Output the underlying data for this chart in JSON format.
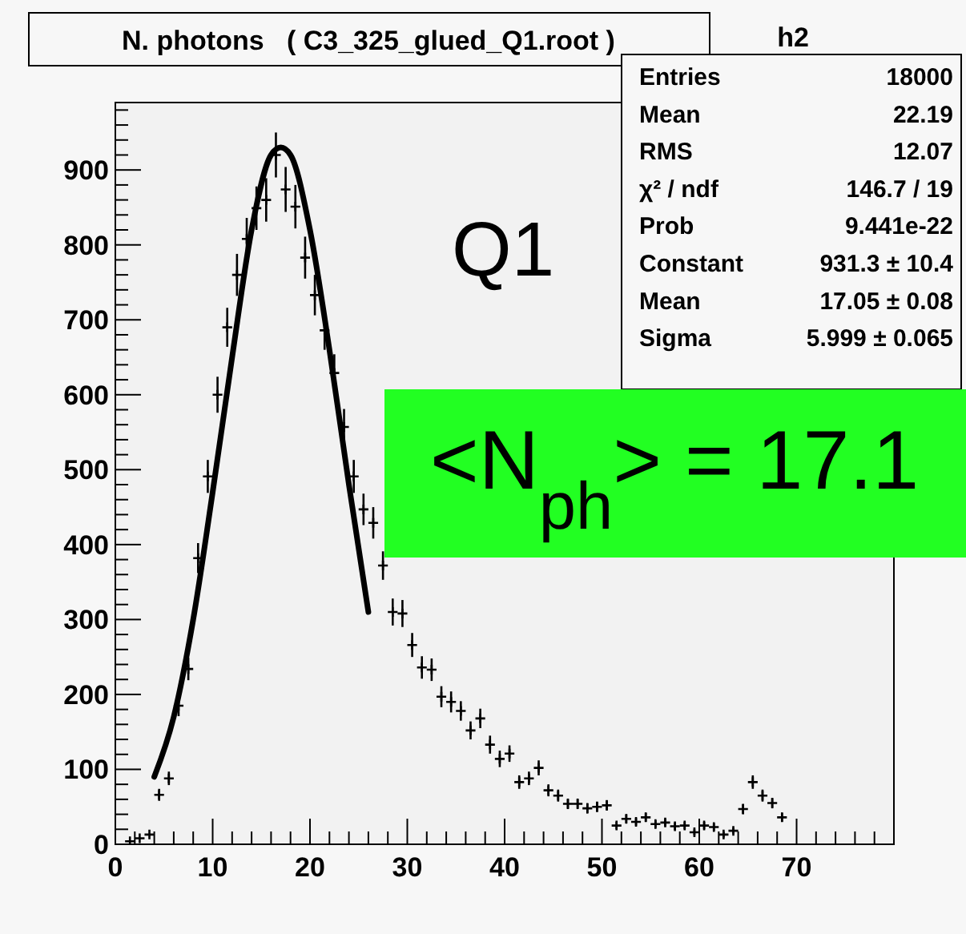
{
  "chart_data": {
    "type": "scatter",
    "title": "N. photons   ( C3_325_glued_Q1.root )",
    "annotations": [
      "h2",
      "Entries",
      "18000",
      "Mean",
      "22.19",
      "RMS",
      "12.07",
      "χ² / ndf",
      "146.7 / 19",
      "Prob",
      "9.441e-22",
      "Constant",
      "931.3 ± 10.4",
      "Mean",
      "17.05 ± 0.08",
      "Sigma",
      "5.999 ± 0.065",
      "Q1",
      "<N$_{ph}$> = 17.1"
    ],
    "xlim": [
      0,
      80
    ],
    "ylim": [
      0,
      990
    ],
    "xticks": [
      0,
      {
        "value": 2,
        "label": null
      },
      {
        "value": 4,
        "label": null
      },
      {
        "value": 6,
        "label": null
      },
      {
        "value": 8,
        "label": null
      },
      10,
      {
        "value": 12,
        "label": null
      },
      {
        "value": 14,
        "label": null
      },
      {
        "value": 16,
        "label": null
      },
      {
        "value": 18,
        "label": null
      },
      20,
      {
        "value": 22,
        "label": null
      },
      {
        "value": 24,
        "label": null
      },
      {
        "value": 26,
        "label": null
      },
      {
        "value": 28,
        "label": null
      },
      30,
      {
        "value": 32,
        "label": null
      },
      {
        "value": 34,
        "label": null
      },
      {
        "value": 36,
        "label": null
      },
      {
        "value": 38,
        "label": null
      },
      40,
      {
        "value": 42,
        "label": null
      },
      {
        "value": 44,
        "label": null
      },
      {
        "value": 46,
        "label": null
      },
      {
        "value": 48,
        "label": null
      },
      50,
      {
        "value": 52,
        "label": null
      },
      {
        "value": 54,
        "label": null
      },
      {
        "value": 56,
        "label": null
      },
      {
        "value": 58,
        "label": null
      },
      60,
      {
        "value": 62,
        "label": null
      },
      {
        "value": 64,
        "label": null
      },
      {
        "value": 66,
        "label": null
      },
      {
        "value": 68,
        "label": null
      },
      70,
      {
        "value": 72,
        "label": null
      },
      {
        "value": 74,
        "label": null
      },
      {
        "value": 76,
        "label": null
      },
      {
        "value": 78,
        "label": null
      }
    ],
    "yticks": [
      0,
      {
        "value": 20,
        "label": null
      },
      {
        "value": 40,
        "label": null
      },
      {
        "value": 60,
        "label": null
      },
      {
        "value": 80,
        "label": null
      },
      100,
      {
        "value": 120,
        "label": null
      },
      {
        "value": 140,
        "label": null
      },
      {
        "value": 160,
        "label": null
      },
      {
        "value": 180,
        "label": null
      },
      200,
      {
        "value": 220,
        "label": null
      },
      {
        "value": 240,
        "label": null
      },
      {
        "value": 260,
        "label": null
      },
      {
        "value": 280,
        "label": null
      },
      300,
      {
        "value": 320,
        "label": null
      },
      {
        "value": 340,
        "label": null
      },
      {
        "value": 360,
        "label": null
      },
      {
        "value": 380,
        "label": null
      },
      400,
      {
        "value": 420,
        "label": null
      },
      {
        "value": 440,
        "label": null
      },
      {
        "value": 460,
        "label": null
      },
      {
        "value": 480,
        "label": null
      },
      500,
      {
        "value": 520,
        "label": null
      },
      {
        "value": 540,
        "label": null
      },
      {
        "value": 560,
        "label": null
      },
      {
        "value": 580,
        "label": null
      },
      600,
      {
        "value": 620,
        "label": null
      },
      {
        "value": 640,
        "label": null
      },
      {
        "value": 660,
        "label": null
      },
      {
        "value": 680,
        "label": null
      },
      700,
      {
        "value": 720,
        "label": null
      },
      {
        "value": 740,
        "label": null
      },
      {
        "value": 760,
        "label": null
      },
      {
        "value": 780,
        "label": null
      },
      800,
      {
        "value": 820,
        "label": null
      },
      {
        "value": 840,
        "label": null
      },
      {
        "value": 860,
        "label": null
      },
      {
        "value": 880,
        "label": null
      },
      900,
      {
        "value": 920,
        "label": null
      },
      {
        "value": 940,
        "label": null
      },
      {
        "value": 960,
        "label": null
      },
      {
        "value": 980,
        "label": null
      }
    ],
    "grid": false,
    "marker": "cross",
    "line_style": "solid",
    "series": [
      {
        "color": "#000000",
        "x": [
          1.5,
          2.5,
          3.5,
          4.5,
          5.5,
          6.5,
          7.5,
          8.5,
          9.5,
          10.5,
          11.5,
          12.5,
          13.5,
          14.5,
          15.5,
          16.5,
          17.5,
          18.5,
          19.5,
          20.5,
          21.5,
          22.5,
          23.5,
          24.5,
          25.5,
          26.5,
          27.5,
          28.5,
          29.5,
          30.5,
          31.5,
          32.5,
          33.5,
          34.5,
          35.5,
          36.5,
          37.5,
          38.5,
          39.5,
          40.5,
          41.5,
          42.5,
          43.5,
          44.5,
          45.5,
          46.5,
          47.5,
          48.5,
          49.5,
          50.5,
          51.5,
          52.5,
          53.5,
          54.5,
          55.5,
          56.5,
          57.5,
          58.5,
          59.5,
          60.5,
          61.5,
          62.5,
          63.5,
          64.5,
          65.5,
          66.5,
          67.5,
          68.5
        ],
        "values": [
          4,
          8,
          13,
          66,
          88,
          185,
          234,
          382,
          491,
          600,
          690,
          760,
          808,
          849,
          860,
          920,
          874,
          851,
          783,
          733,
          686,
          629,
          557,
          491,
          447,
          429,
          372,
          310,
          308,
          266,
          236,
          233,
          197,
          190,
          178,
          152,
          168,
          133,
          114,
          121,
          83,
          88,
          102,
          72,
          65,
          54,
          54,
          48,
          50,
          52,
          25,
          34,
          30,
          36,
          27,
          29,
          24,
          25,
          16,
          25,
          23,
          13,
          18,
          47,
          83,
          65,
          55,
          36
        ],
        "errors": [
          null,
          null,
          null,
          8,
          9,
          14,
          15,
          20,
          22,
          24,
          26,
          28,
          28,
          29,
          29,
          30,
          30,
          29,
          28,
          27,
          26,
          25,
          24,
          22,
          21,
          21,
          19,
          18,
          18,
          16,
          15,
          15,
          14,
          14,
          13,
          12,
          13,
          12,
          11,
          11,
          9,
          9,
          10,
          8,
          8,
          7,
          7,
          7,
          7,
          7,
          5,
          6,
          5,
          6,
          5,
          5,
          5,
          5,
          4,
          5,
          5,
          4,
          4,
          7,
          9,
          8,
          7,
          6
        ]
      },
      {
        "type": "line",
        "marker": "none",
        "color": "#000000",
        "x": [
          4,
          6,
          8,
          10,
          12,
          14,
          16,
          17,
          18,
          20,
          22,
          24,
          26
        ],
        "values": [
          90,
          170,
          300,
          470,
          650,
          820,
          920,
          930,
          920,
          820,
          660,
          480,
          310
        ]
      }
    ]
  }
}
